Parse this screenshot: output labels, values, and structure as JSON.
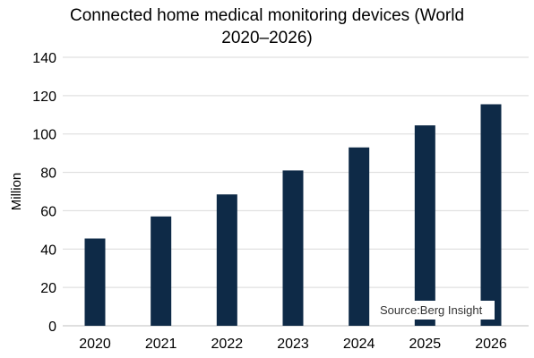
{
  "colors": {
    "bar": "#0e2a47",
    "grid": "#d9d9d9",
    "axis": "#bfbfbf",
    "source_bg": "#ffffff"
  },
  "chart_data": {
    "type": "bar",
    "title_line1": "Connected home medical monitoring devices (World",
    "title_line2": "2020–2026)",
    "xlabel": "",
    "ylabel": "Million",
    "categories": [
      "2020",
      "2021",
      "2022",
      "2023",
      "2024",
      "2025",
      "2026"
    ],
    "values": [
      45.5,
      57,
      68.5,
      81,
      93,
      104.5,
      115.5
    ],
    "ylim": [
      0,
      140
    ],
    "yticks": [
      0,
      20,
      40,
      60,
      80,
      100,
      120,
      140
    ],
    "grid": true,
    "legend": "none",
    "source": "Source:Berg Insight"
  }
}
